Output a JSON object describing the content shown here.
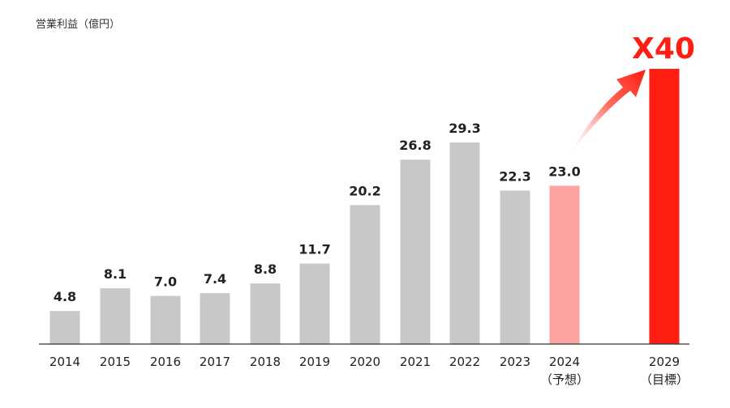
{
  "chart_data": {
    "type": "bar",
    "ylabel": "営業利益（億円）",
    "categories": [
      "2014",
      "2015",
      "2016",
      "2017",
      "2018",
      "2019",
      "2020",
      "2021",
      "2022",
      "2023",
      "2024",
      "2029"
    ],
    "category_sublabels": [
      "",
      "",
      "",
      "",
      "",
      "",
      "",
      "",
      "",
      "",
      "（予想）",
      "（目標）"
    ],
    "values": [
      4.8,
      8.1,
      7.0,
      7.4,
      8.8,
      11.7,
      20.2,
      26.8,
      29.3,
      22.3,
      23.0,
      40
    ],
    "value_labels": [
      "4.8",
      "8.1",
      "7.0",
      "7.4",
      "8.8",
      "11.7",
      "20.2",
      "26.8",
      "29.3",
      "22.3",
      "23.0",
      ""
    ],
    "ylim": [
      0,
      45
    ],
    "grid": false,
    "annotation": "X40",
    "colors": {
      "actual": "#c8c8c8",
      "forecast": "#fba39e",
      "target": "#ff1e12",
      "axis": "#333333"
    }
  }
}
